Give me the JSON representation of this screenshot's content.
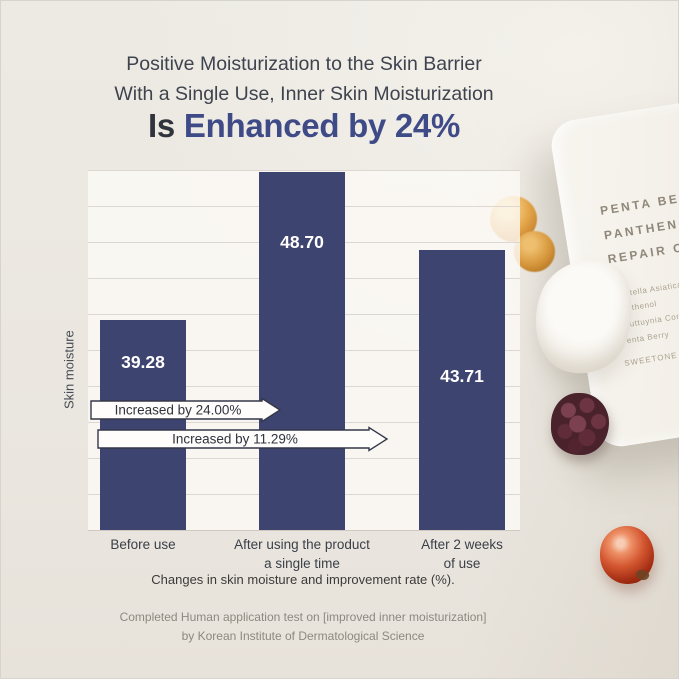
{
  "header": {
    "line1": "Positive Moisturization to the Skin Barrier",
    "line2": "With a Single Use, Inner Skin Moisturization",
    "line3_prefix": "Is",
    "line3_highlight": "Enhanced by 24%",
    "highlight_color": "#3f4b87"
  },
  "chart_data": {
    "type": "bar",
    "title": "",
    "ylabel": "Skin moisture",
    "xlabel": "",
    "categories": [
      [
        "Before use"
      ],
      [
        "After using the product",
        "a single time"
      ],
      [
        "After 2 weeks",
        "of use"
      ]
    ],
    "values": [
      39.28,
      48.7,
      43.71
    ],
    "value_labels": [
      "39.28",
      "48.70",
      "43.71"
    ],
    "ylim": [
      26,
      48.8
    ],
    "grid": true,
    "legend": "none",
    "bar_color": "#3e4470",
    "annotations": [
      {
        "label": "Increased by 24.00%"
      },
      {
        "label": "Increased by 11.29%"
      }
    ],
    "caption": "Changes in skin moisture and improvement rate (%)."
  },
  "footer": {
    "line1": "Completed Human application test on [improved inner moisturization]",
    "line2": "by Korean Institute of Dermatological Science"
  },
  "product": {
    "name_lines": [
      "PENTA BERRY",
      "PANTHENOL",
      "REPAIR CREA"
    ],
    "ingredients": [
      "Centella Asiatica",
      "Panthenol",
      "Houttuynia Cordata",
      "Penta Berry",
      "SWEETONE"
    ]
  }
}
